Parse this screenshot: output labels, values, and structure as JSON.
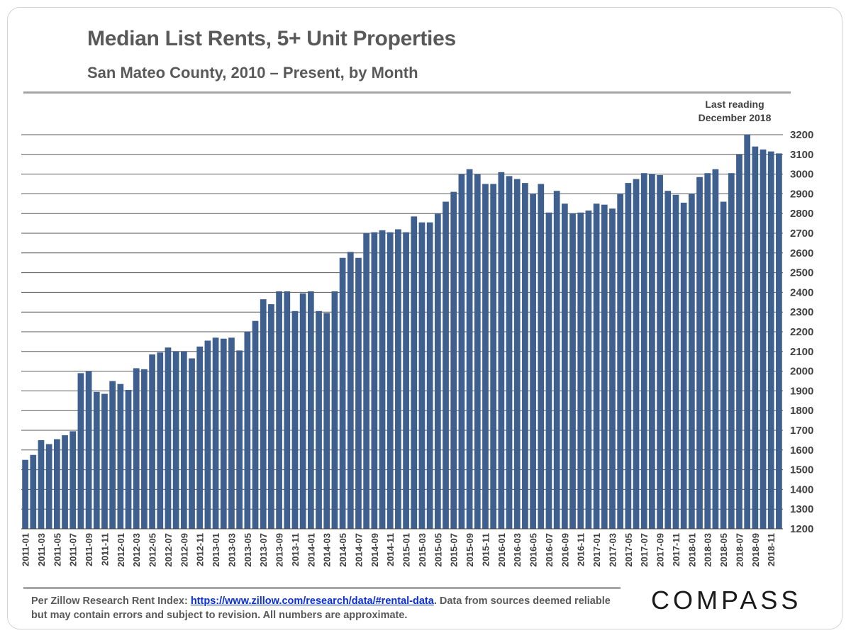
{
  "header": {
    "title": "Median List Rents, 5+ Unit Properties",
    "subtitle": "San Mateo County, 2010 – Present, by Month"
  },
  "annotation": {
    "line1": "Last reading",
    "line2": "December 2018"
  },
  "footer": {
    "prefix": "Per Zillow Research Rent Index: ",
    "link": "https://www.zillow.com/research/data/#rental-data",
    "suffix": ". Data from sources deemed reliable but may contain errors and subject to revision. All numbers are approximate."
  },
  "brand": {
    "logo": "COMPASS"
  },
  "colors": {
    "bar": "#3F5F8F",
    "grid": "#595959",
    "text": "#595959"
  },
  "chart_data": {
    "type": "bar",
    "title": "Median List Rents, 5+ Unit Properties",
    "subtitle": "San Mateo County, 2010 – Present, by Month",
    "ylim": [
      1200,
      3200
    ],
    "yticks": [
      1200,
      1300,
      1400,
      1500,
      1600,
      1700,
      1800,
      1900,
      2000,
      2100,
      2200,
      2300,
      2400,
      2500,
      2600,
      2700,
      2800,
      2900,
      3000,
      3100,
      3200
    ],
    "y_axis_position": "right",
    "grid": true,
    "categories": [
      "2011-01",
      "2011-02",
      "2011-03",
      "2011-04",
      "2011-05",
      "2011-06",
      "2011-07",
      "2011-08",
      "2011-09",
      "2011-10",
      "2011-11",
      "2011-12",
      "2012-01",
      "2012-02",
      "2012-03",
      "2012-04",
      "2012-05",
      "2012-06",
      "2012-07",
      "2012-08",
      "2012-09",
      "2012-10",
      "2012-11",
      "2012-12",
      "2013-01",
      "2013-02",
      "2013-03",
      "2013-04",
      "2013-05",
      "2013-06",
      "2013-07",
      "2013-08",
      "2013-09",
      "2013-10",
      "2013-11",
      "2013-12",
      "2014-01",
      "2014-02",
      "2014-03",
      "2014-04",
      "2014-05",
      "2014-06",
      "2014-07",
      "2014-08",
      "2014-09",
      "2014-10",
      "2014-11",
      "2014-12",
      "2015-01",
      "2015-02",
      "2015-03",
      "2015-04",
      "2015-05",
      "2015-06",
      "2015-07",
      "2015-08",
      "2015-09",
      "2015-10",
      "2015-11",
      "2015-12",
      "2016-01",
      "2016-02",
      "2016-03",
      "2016-04",
      "2016-05",
      "2016-06",
      "2016-07",
      "2016-08",
      "2016-09",
      "2016-10",
      "2016-11",
      "2016-12",
      "2017-01",
      "2017-02",
      "2017-03",
      "2017-04",
      "2017-05",
      "2017-06",
      "2017-07",
      "2017-08",
      "2017-09",
      "2017-10",
      "2017-11",
      "2017-12",
      "2018-01",
      "2018-02",
      "2018-03",
      "2018-04",
      "2018-05",
      "2018-06",
      "2018-07",
      "2018-08",
      "2018-09",
      "2018-10",
      "2018-11",
      "2018-12"
    ],
    "xtick_labels": [
      "2011-01",
      "2011-03",
      "2011-05",
      "2011-07",
      "2011-09",
      "2011-11",
      "2012-01",
      "2012-03",
      "2012-05",
      "2012-07",
      "2012-09",
      "2012-11",
      "2013-01",
      "2013-03",
      "2013-05",
      "2013-07",
      "2013-09",
      "2013-11",
      "2014-01",
      "2014-03",
      "2014-05",
      "2014-07",
      "2014-09",
      "2014-11",
      "2015-01",
      "2015-03",
      "2015-05",
      "2015-07",
      "2015-09",
      "2015-11",
      "2016-01",
      "2016-03",
      "2016-05",
      "2016-07",
      "2016-09",
      "2016-11",
      "2017-01",
      "2017-03",
      "2017-05",
      "2017-07",
      "2017-09",
      "2017-11",
      "2018-01",
      "2018-03",
      "2018-05",
      "2018-07",
      "2018-09",
      "2018-11"
    ],
    "values": [
      1550,
      1575,
      1650,
      1630,
      1655,
      1675,
      1695,
      1990,
      2000,
      1895,
      1885,
      1950,
      1935,
      1905,
      2015,
      2010,
      2085,
      2095,
      2120,
      2100,
      2100,
      2065,
      2125,
      2155,
      2170,
      2165,
      2170,
      2105,
      2200,
      2255,
      2365,
      2340,
      2405,
      2405,
      2305,
      2395,
      2405,
      2305,
      2295,
      2405,
      2575,
      2605,
      2575,
      2700,
      2705,
      2715,
      2705,
      2720,
      2705,
      2785,
      2755,
      2755,
      2800,
      2860,
      2910,
      3000,
      3025,
      3000,
      2950,
      2950,
      3010,
      2990,
      2975,
      2955,
      2900,
      2950,
      2805,
      2915,
      2850,
      2800,
      2805,
      2815,
      2850,
      2845,
      2825,
      2900,
      2955,
      2975,
      3005,
      3000,
      2995,
      2915,
      2895,
      2855,
      2900,
      2985,
      3005,
      3025,
      2860,
      3005,
      3100,
      3200,
      3140,
      3125,
      3115,
      3105
    ]
  }
}
